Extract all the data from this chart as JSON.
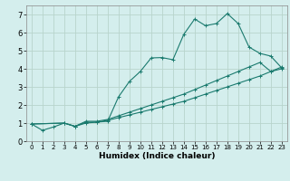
{
  "xlabel": "Humidex (Indice chaleur)",
  "bg_color": "#d4eeed",
  "grid_color": "#b8d4cc",
  "line_color": "#1a7a6e",
  "xlim": [
    -0.5,
    23.5
  ],
  "ylim": [
    0,
    7.5
  ],
  "xticks": [
    0,
    1,
    2,
    3,
    4,
    5,
    6,
    7,
    8,
    9,
    10,
    11,
    12,
    13,
    14,
    15,
    16,
    17,
    18,
    19,
    20,
    21,
    22,
    23
  ],
  "yticks": [
    0,
    1,
    2,
    3,
    4,
    5,
    6,
    7
  ],
  "line1_x": [
    0,
    1,
    2,
    3,
    4,
    5,
    6,
    7,
    8,
    9,
    10,
    11,
    12,
    13,
    14,
    15,
    16,
    17,
    18,
    19,
    20,
    21,
    22,
    23
  ],
  "line1_y": [
    0.95,
    0.6,
    0.78,
    1.0,
    0.82,
    1.0,
    1.05,
    1.1,
    2.45,
    3.3,
    3.85,
    4.6,
    4.62,
    4.5,
    5.9,
    6.75,
    6.38,
    6.5,
    7.05,
    6.5,
    5.2,
    4.85,
    4.7,
    4.05
  ],
  "line2_x": [
    0,
    3,
    4,
    5,
    6,
    7,
    8,
    9,
    10,
    11,
    12,
    13,
    14,
    15,
    16,
    17,
    18,
    19,
    20,
    21,
    22,
    23
  ],
  "line2_y": [
    0.95,
    1.0,
    0.82,
    1.05,
    1.05,
    1.15,
    1.3,
    1.45,
    1.6,
    1.75,
    1.9,
    2.05,
    2.2,
    2.4,
    2.6,
    2.8,
    3.0,
    3.2,
    3.4,
    3.6,
    3.85,
    4.0
  ],
  "line3_x": [
    0,
    3,
    4,
    5,
    6,
    7,
    8,
    9,
    10,
    11,
    12,
    13,
    14,
    15,
    16,
    17,
    18,
    19,
    20,
    21,
    22,
    23
  ],
  "line3_y": [
    0.95,
    1.0,
    0.82,
    1.1,
    1.1,
    1.2,
    1.4,
    1.6,
    1.8,
    2.0,
    2.2,
    2.4,
    2.6,
    2.85,
    3.1,
    3.35,
    3.6,
    3.85,
    4.1,
    4.35,
    3.85,
    4.1
  ]
}
